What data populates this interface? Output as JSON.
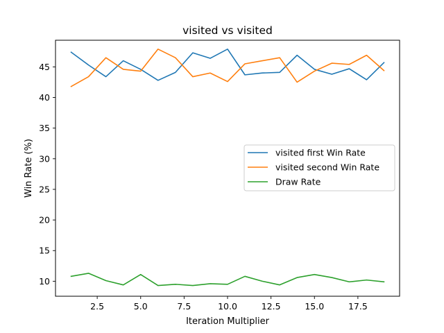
{
  "chart_data": {
    "type": "line",
    "title": "visited vs visited",
    "xlabel": "Iteration Multiplier",
    "ylabel": "Win Rate (%)",
    "xlim": [
      0.1,
      19.9
    ],
    "ylim": [
      7.55,
      49.35
    ],
    "xticks": [
      2.5,
      5.0,
      7.5,
      10.0,
      12.5,
      15.0,
      17.5
    ],
    "xtick_labels": [
      "2.5",
      "5.0",
      "7.5",
      "10.0",
      "12.5",
      "15.0",
      "17.5"
    ],
    "yticks": [
      10,
      15,
      20,
      25,
      30,
      35,
      40,
      45
    ],
    "ytick_labels": [
      "10",
      "15",
      "20",
      "25",
      "30",
      "35",
      "40",
      "45"
    ],
    "grid": false,
    "legend_position": "center-right",
    "x": [
      1,
      2,
      3,
      4,
      5,
      6,
      7,
      8,
      9,
      10,
      11,
      12,
      13,
      14,
      15,
      16,
      17,
      18,
      19
    ],
    "series": [
      {
        "name": "visited first Win Rate",
        "color": "#1f77b4",
        "values": [
          47.4,
          45.3,
          43.4,
          46.0,
          44.6,
          42.8,
          44.1,
          47.3,
          46.4,
          47.9,
          43.7,
          44.0,
          44.1,
          46.9,
          44.6,
          43.8,
          44.7,
          42.9,
          45.7
        ]
      },
      {
        "name": "visited second Win Rate",
        "color": "#ff7f0e",
        "values": [
          41.8,
          43.4,
          46.5,
          44.6,
          44.3,
          47.9,
          46.5,
          43.4,
          44.0,
          42.6,
          45.5,
          46.0,
          46.5,
          42.5,
          44.3,
          45.6,
          45.4,
          46.9,
          44.4
        ]
      },
      {
        "name": "Draw Rate",
        "color": "#2ca02c",
        "values": [
          10.8,
          11.3,
          10.1,
          9.4,
          11.1,
          9.3,
          9.5,
          9.3,
          9.6,
          9.5,
          10.8,
          10.0,
          9.4,
          10.6,
          11.1,
          10.6,
          9.9,
          10.2,
          9.9
        ]
      }
    ]
  }
}
